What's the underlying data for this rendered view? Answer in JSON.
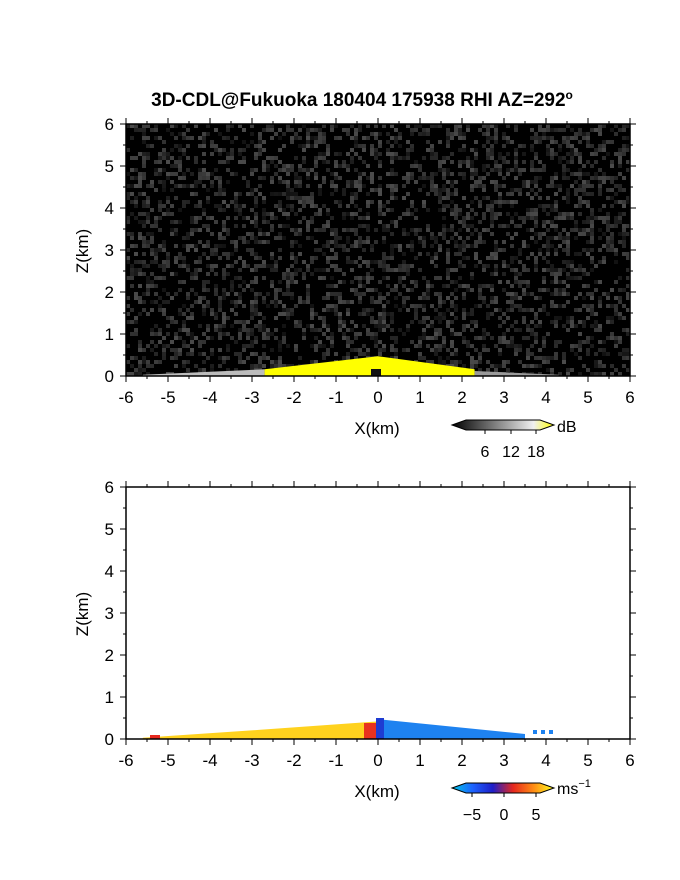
{
  "chart_data": [
    {
      "type": "heatmap",
      "title": "3D-CDL@Fukuoka 180404 175938 RHI AZ=292",
      "title_superscript": "o",
      "xlabel": "X(km)",
      "ylabel": "Z(km)",
      "xlim": [
        -6,
        6
      ],
      "ylim": [
        0,
        6
      ],
      "x_ticks": [
        "-6",
        "-5",
        "-4",
        "-3",
        "-2",
        "-1",
        "0",
        "1",
        "2",
        "3",
        "4",
        "5",
        "6"
      ],
      "y_ticks": [
        "0",
        "1",
        "2",
        "3",
        "4",
        "5",
        "6"
      ],
      "background": "#000000",
      "colorbar": {
        "unit": "dB",
        "ticks": [
          "6",
          "12",
          "18"
        ],
        "range": [
          0,
          21
        ],
        "colors": [
          "#000000",
          "#3c3c3c",
          "#787878",
          "#b4b4b4",
          "#f0f0f0",
          "#ffff00"
        ]
      },
      "echo_regions": [
        {
          "x": [
            -5.6,
            -2.7
          ],
          "top_km": [
            0.03,
            0.16
          ],
          "value_db": 10,
          "color": "#bcbcbc"
        },
        {
          "x": [
            -2.7,
            2.3
          ],
          "top_km": [
            0.16,
            0.47,
            0.16
          ],
          "peak_x": 0.0,
          "value_db": 20,
          "color": "#ffff00"
        },
        {
          "x": [
            2.3,
            4.3
          ],
          "top_km": [
            0.12,
            0.03
          ],
          "value_db": 10,
          "color": "#9a9a9a"
        }
      ]
    },
    {
      "type": "heatmap",
      "xlabel": "X(km)",
      "ylabel": "Z(km)",
      "xlim": [
        -6,
        6
      ],
      "ylim": [
        0,
        6
      ],
      "x_ticks": [
        "-6",
        "-5",
        "-4",
        "-3",
        "-2",
        "-1",
        "0",
        "1",
        "2",
        "3",
        "4",
        "5",
        "6"
      ],
      "y_ticks": [
        "0",
        "1",
        "2",
        "3",
        "4",
        "5",
        "6"
      ],
      "background": "#ffffff",
      "colorbar": {
        "unit": "ms",
        "unit_superscript": "−1",
        "ticks": [
          "−5",
          "0",
          "5"
        ],
        "range": [
          -7,
          7
        ],
        "colors": [
          "#00c8e6",
          "#1e64ff",
          "#1e1ec8",
          "#e6281e",
          "#ff8c14",
          "#ffff1e"
        ]
      },
      "echo_regions": [
        {
          "x": [
            -5.6,
            0.0
          ],
          "top_km": [
            0.03,
            0.22,
            0.42
          ],
          "value_ms": 5,
          "color": "#ffd21e"
        },
        {
          "x": [
            0.0,
            3.5
          ],
          "top_km": [
            0.47,
            0.12
          ],
          "value_ms": -4,
          "color": "#1e82f0"
        }
      ]
    }
  ]
}
